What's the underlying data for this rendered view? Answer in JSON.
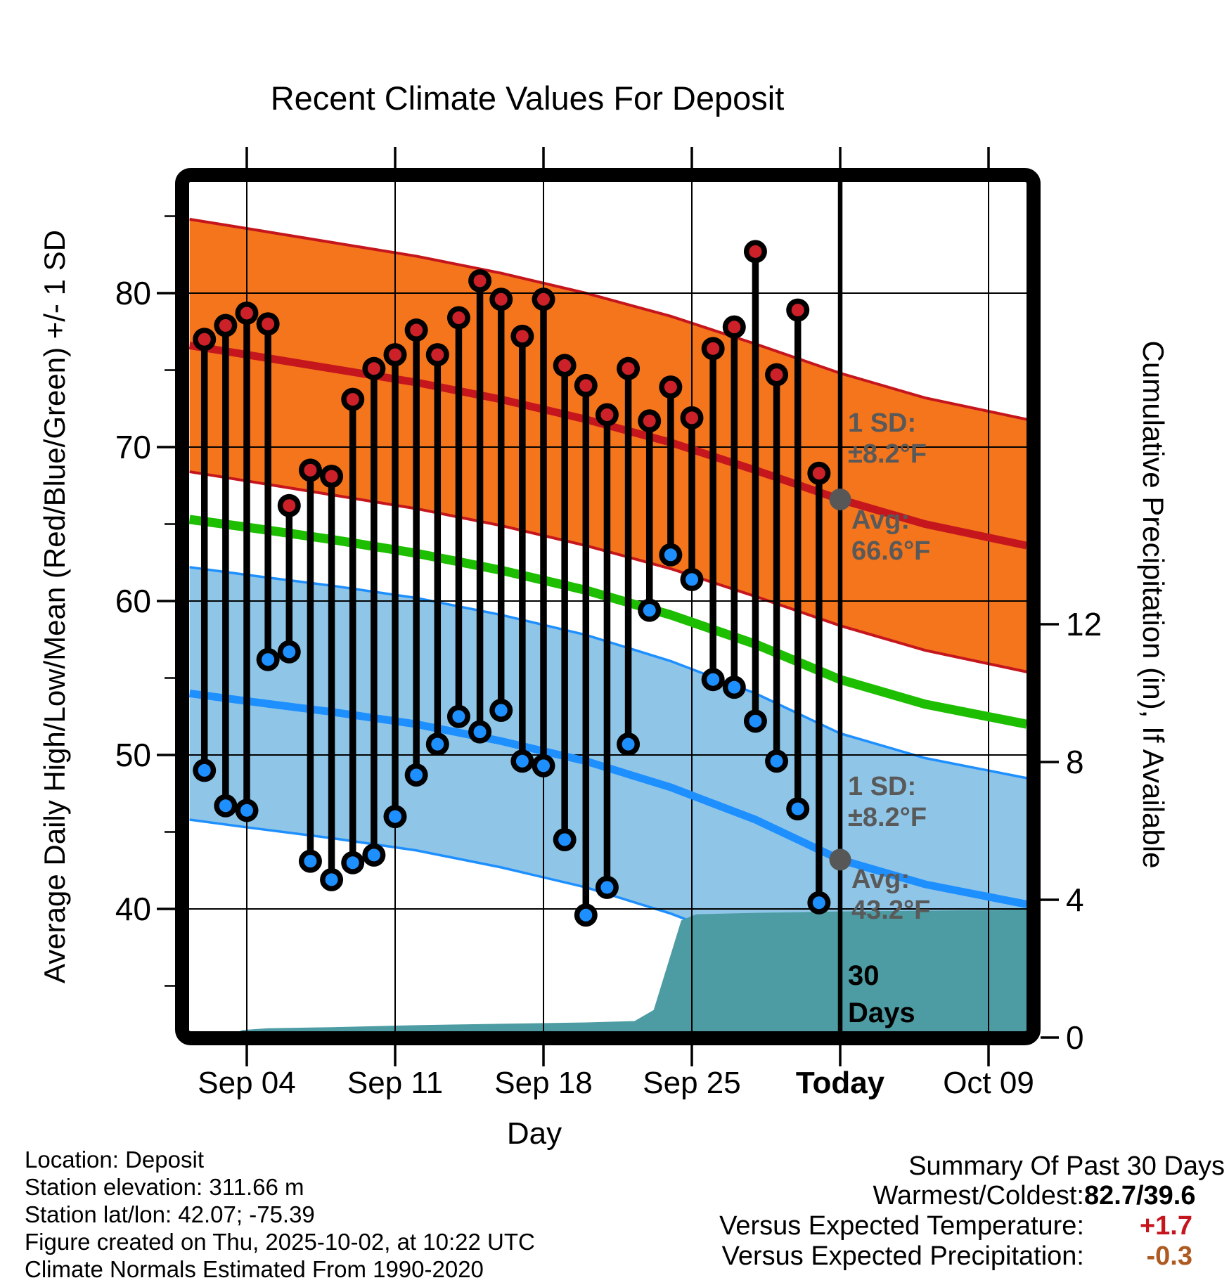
{
  "title": "Recent Climate Values For Deposit",
  "chart_data": {
    "type": "climate-daily-range",
    "title": "Recent Climate Values For Deposit",
    "x_axis": {
      "label": "Day",
      "ticks": [
        {
          "label": "Sep 04",
          "day": 4,
          "bold": false
        },
        {
          "label": "Sep 11",
          "day": 11,
          "bold": false
        },
        {
          "label": "Sep 18",
          "day": 18,
          "bold": false
        },
        {
          "label": "Sep 25",
          "day": 25,
          "bold": false
        },
        {
          "label": "Today",
          "day": 32,
          "bold": true
        },
        {
          "label": "Oct 09",
          "day": 39,
          "bold": false
        }
      ]
    },
    "y_left": {
      "label": "Average Daily High/Low/Mean (Red/Blue/Green) +/- 1 SD",
      "ticks": [
        80,
        70,
        60,
        50,
        40
      ],
      "minor_ticks": [
        85,
        75,
        65,
        55,
        45,
        35
      ],
      "range_f": [
        31.8,
        88.6
      ]
    },
    "y_right": {
      "label": "Cumulative Precipitation (in), If Available",
      "ticks": [
        12,
        8,
        4,
        0
      ]
    },
    "daily": [
      {
        "date": "Sep 02",
        "day": 2,
        "high": 77.0,
        "low": 49.0
      },
      {
        "date": "Sep 03",
        "day": 3,
        "high": 77.9,
        "low": 46.7
      },
      {
        "date": "Sep 04",
        "day": 4,
        "high": 78.7,
        "low": 46.4
      },
      {
        "date": "Sep 05",
        "day": 5,
        "high": 78.0,
        "low": 56.2
      },
      {
        "date": "Sep 06",
        "day": 6,
        "high": 66.2,
        "low": 56.7
      },
      {
        "date": "Sep 07",
        "day": 7,
        "high": 68.5,
        "low": 43.1
      },
      {
        "date": "Sep 08",
        "day": 8,
        "high": 68.1,
        "low": 41.9
      },
      {
        "date": "Sep 09",
        "day": 9,
        "high": 73.1,
        "low": 43.0
      },
      {
        "date": "Sep 10",
        "day": 10,
        "high": 75.1,
        "low": 43.5
      },
      {
        "date": "Sep 11",
        "day": 11,
        "high": 76.0,
        "low": 46.0
      },
      {
        "date": "Sep 12",
        "day": 12,
        "high": 77.6,
        "low": 48.7
      },
      {
        "date": "Sep 13",
        "day": 13,
        "high": 76.0,
        "low": 50.7
      },
      {
        "date": "Sep 14",
        "day": 14,
        "high": 78.4,
        "low": 52.5
      },
      {
        "date": "Sep 15",
        "day": 15,
        "high": 80.8,
        "low": 51.5
      },
      {
        "date": "Sep 16",
        "day": 16,
        "high": 79.6,
        "low": 52.9
      },
      {
        "date": "Sep 17",
        "day": 17,
        "high": 77.2,
        "low": 49.6
      },
      {
        "date": "Sep 18",
        "day": 18,
        "high": 79.6,
        "low": 49.3
      },
      {
        "date": "Sep 19",
        "day": 19,
        "high": 75.3,
        "low": 44.5
      },
      {
        "date": "Sep 20",
        "day": 20,
        "high": 74.0,
        "low": 39.6
      },
      {
        "date": "Sep 21",
        "day": 21,
        "high": 72.1,
        "low": 41.4
      },
      {
        "date": "Sep 22",
        "day": 22,
        "high": 75.1,
        "low": 50.7
      },
      {
        "date": "Sep 23",
        "day": 23,
        "high": 71.7,
        "low": 59.4
      },
      {
        "date": "Sep 24",
        "day": 24,
        "high": 73.9,
        "low": 63.0
      },
      {
        "date": "Sep 25",
        "day": 25,
        "high": 71.9,
        "low": 61.4
      },
      {
        "date": "Sep 26",
        "day": 26,
        "high": 76.4,
        "low": 54.9
      },
      {
        "date": "Sep 27",
        "day": 27,
        "high": 77.8,
        "low": 54.4
      },
      {
        "date": "Sep 28",
        "day": 28,
        "high": 82.7,
        "low": 52.2
      },
      {
        "date": "Sep 29",
        "day": 29,
        "high": 74.7,
        "low": 49.6
      },
      {
        "date": "Sep 30",
        "day": 30,
        "high": 78.9,
        "low": 46.5
      },
      {
        "date": "Oct 01",
        "day": 31,
        "high": 68.3,
        "low": 40.4
      }
    ],
    "normals": {
      "sd_f": 8.2,
      "days": [
        1.3,
        4,
        8,
        12,
        16,
        20,
        24,
        28,
        32,
        36,
        40.8
      ],
      "avg_high": [
        76.6,
        76.0,
        75.1,
        74.2,
        73.1,
        71.8,
        70.3,
        68.5,
        66.6,
        65.0,
        63.6
      ],
      "avg_low": [
        54.0,
        53.5,
        52.8,
        52.0,
        50.9,
        49.6,
        47.9,
        45.8,
        43.2,
        41.6,
        40.3
      ],
      "mean": [
        65.3,
        64.8,
        64.0,
        63.1,
        62.0,
        60.7,
        59.1,
        57.2,
        54.9,
        53.3,
        52.0
      ]
    },
    "precip": {
      "days": [
        1.3,
        3,
        3.8,
        5,
        8,
        12,
        16,
        20,
        22.3,
        23.2,
        24.5,
        25.2,
        28,
        32,
        36,
        40.8
      ],
      "cumulative_in": [
        0,
        0.02,
        0.22,
        0.27,
        0.3,
        0.36,
        0.4,
        0.44,
        0.48,
        0.8,
        3.4,
        3.58,
        3.62,
        3.66,
        3.68,
        3.72
      ]
    },
    "today": {
      "label": "Today",
      "day": 32,
      "avg_high_f": 66.6,
      "avg_low_f": 43.2
    },
    "annotations": {
      "high_sd": {
        "line1": "1 SD:",
        "line2": "±8.2°F"
      },
      "high_avg": {
        "line1": "Avg:",
        "line2": "66.6°F"
      },
      "low_sd": {
        "line1": "1 SD:",
        "line2": "±8.2°F"
      },
      "low_avg": {
        "line1": "Avg:",
        "line2": "43.2°F"
      },
      "window": {
        "line1": "30",
        "line2": "Days"
      }
    }
  },
  "footer": {
    "lines": [
      "Location: Deposit",
      "Station elevation: 311.66 m",
      "Station lat/lon: 42.07; -75.39",
      "Figure created on Thu, 2025-10-02, at 10:22 UTC",
      "Climate Normals Estimated From 1990-2020"
    ]
  },
  "summary": {
    "title": "Summary Of Past 30 Days",
    "rows": [
      {
        "label": "Warmest/Coldest:",
        "value": "82.7/39.6",
        "style": "black"
      },
      {
        "label": "Versus Expected Temperature:",
        "value": "+1.7",
        "style": "red"
      },
      {
        "label": "Versus Expected Precipitation:",
        "value": "-0.3",
        "style": "brown"
      }
    ]
  },
  "colors": {
    "high_band": "#F4751B",
    "high_line": "#C5161D",
    "mean_line": "#1DBE00",
    "low_band": "#8FC6E8",
    "low_line": "#1E8FFF",
    "dot_high": "#CC2128",
    "dot_low": "#1E8FFF",
    "stem": "#000000",
    "precip_fill": "#4D9CA3",
    "today_marker": "#575757",
    "annotation_gray": "#595959",
    "value_black": "#000000",
    "value_red": "#C5161D",
    "value_brown": "#AE5A21"
  }
}
